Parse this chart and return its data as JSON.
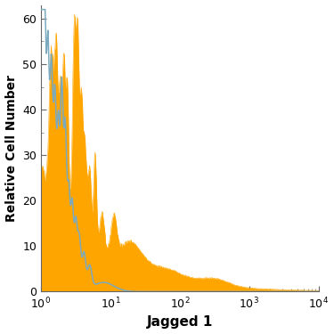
{
  "title": "",
  "xlabel": "Jagged 1",
  "ylabel": "Relative Cell Number",
  "xlim_log": [
    1.0,
    10000.0
  ],
  "ylim": [
    0,
    63
  ],
  "yticks": [
    0,
    10,
    20,
    30,
    40,
    50,
    60
  ],
  "orange_color": "#FFA500",
  "blue_color": "#7BAABF",
  "background_color": "#FFFFFF",
  "xlabel_fontsize": 11,
  "ylabel_fontsize": 10,
  "tick_fontsize": 9,
  "figsize": [
    3.75,
    3.75
  ],
  "dpi": 100
}
